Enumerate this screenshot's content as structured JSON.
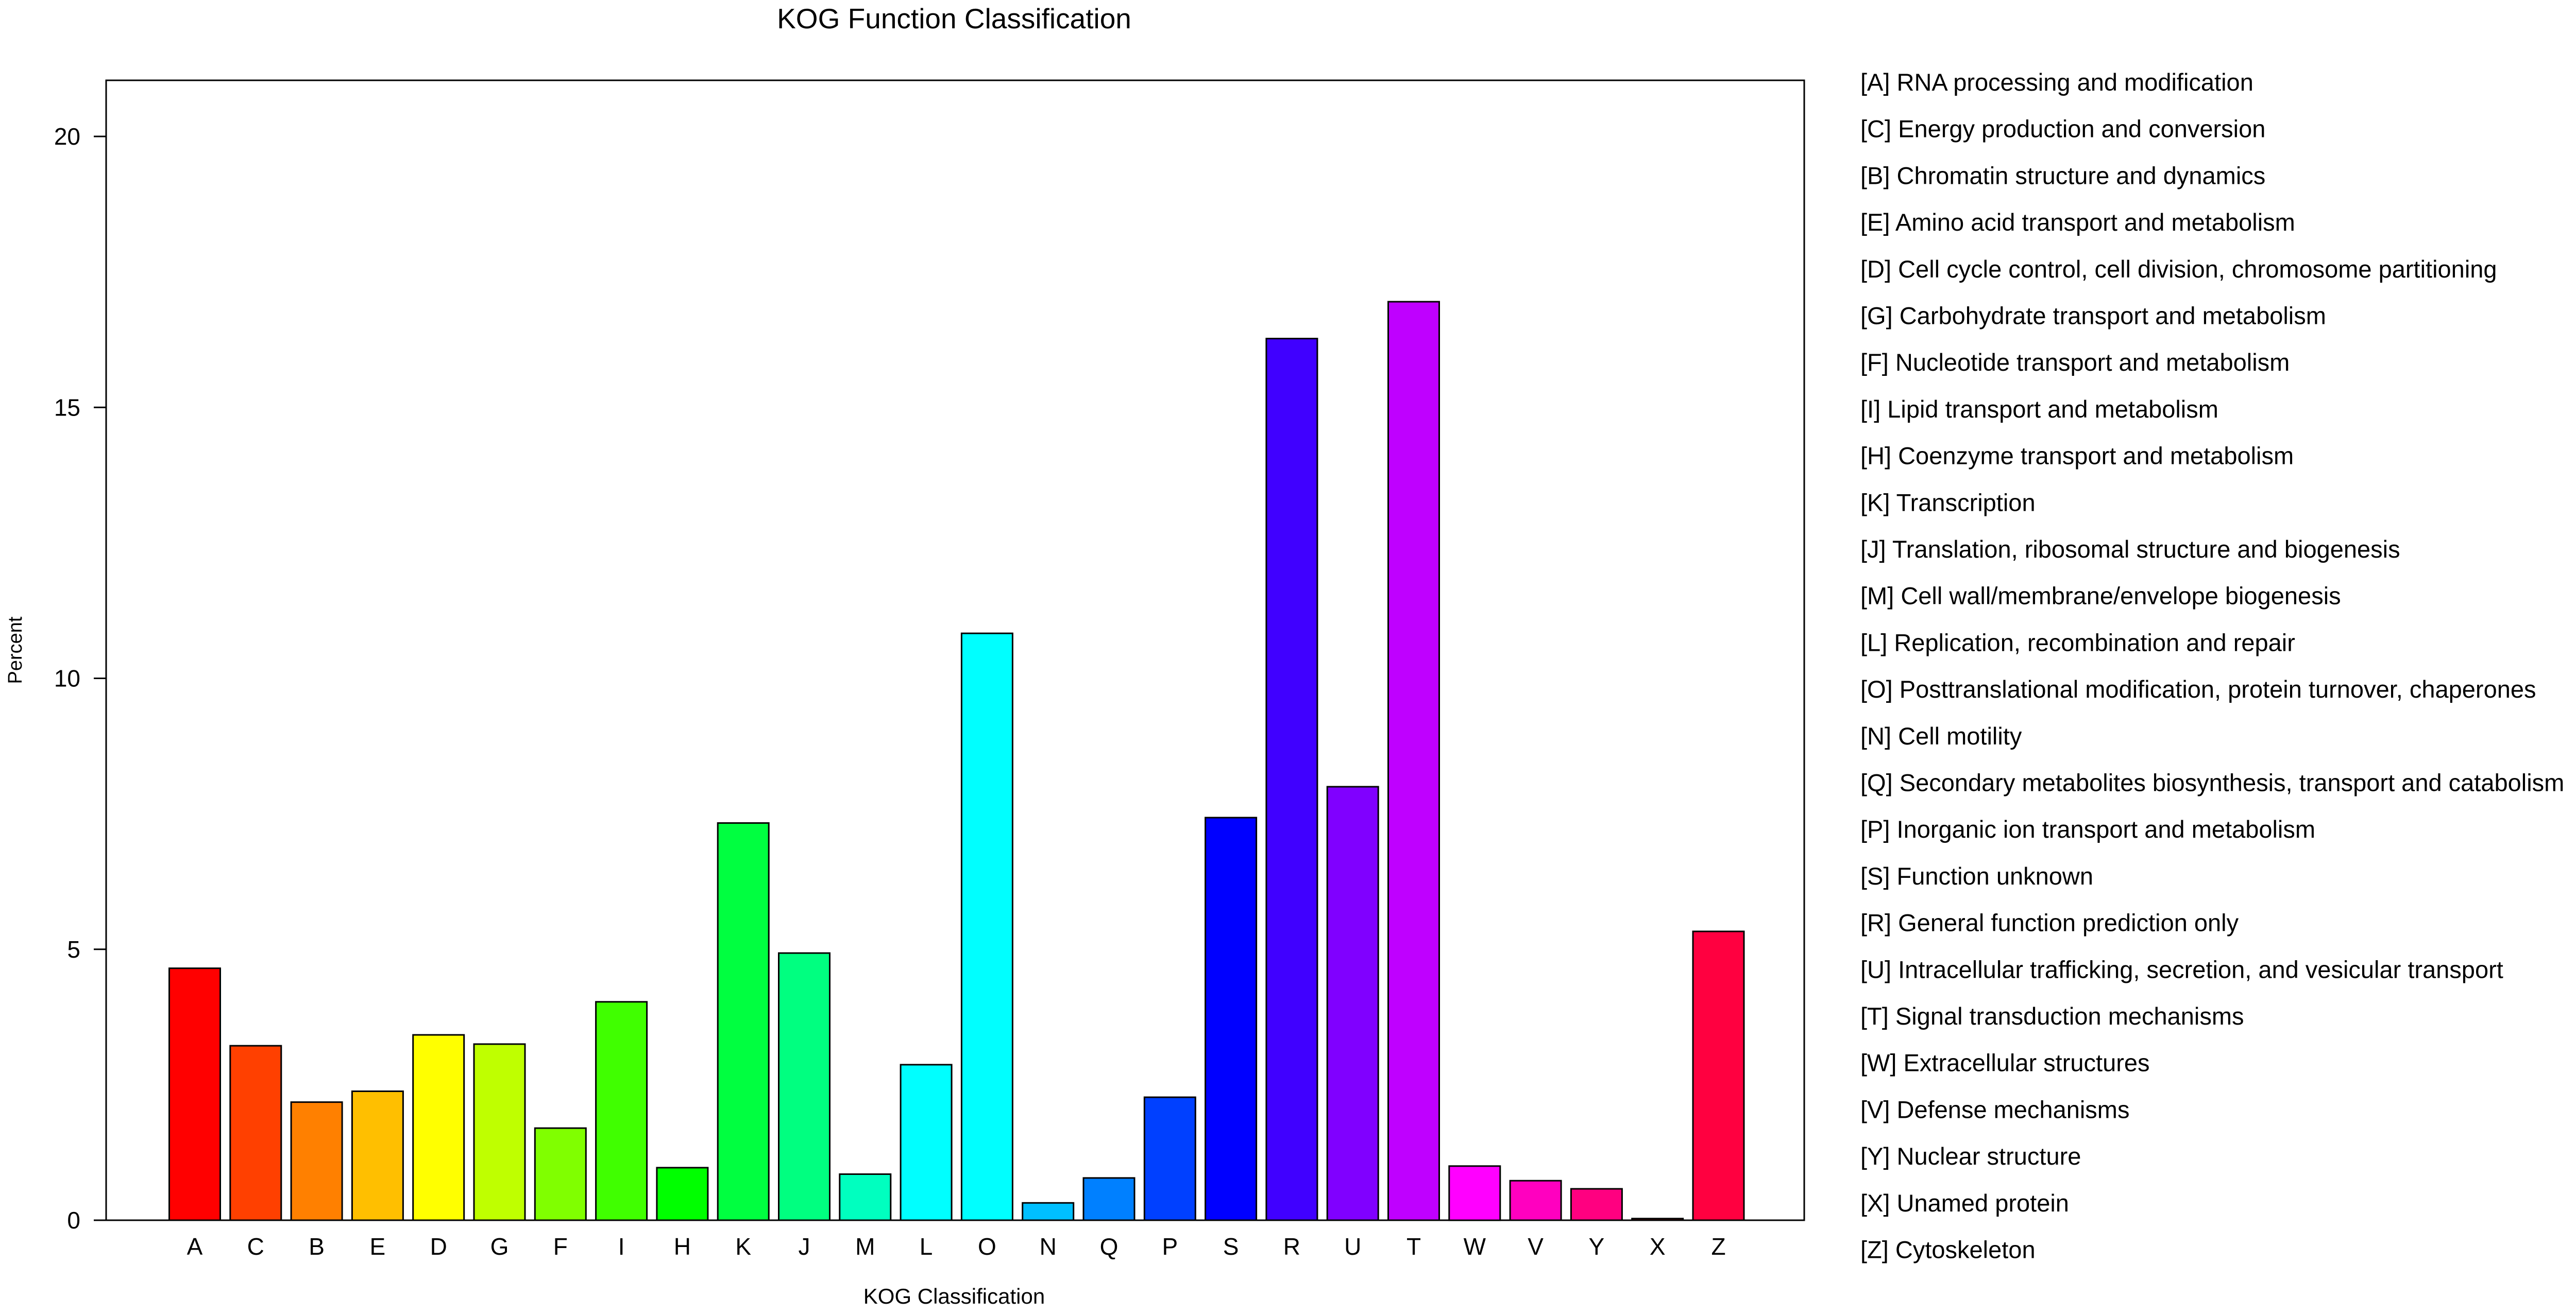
{
  "chart_data": {
    "type": "bar",
    "title": "KOG Function Classification",
    "xlabel": "KOG Classification",
    "ylabel": "Percent",
    "ylim": [
      0,
      21
    ],
    "yticks": [
      0,
      5,
      10,
      15,
      20
    ],
    "grid": false,
    "legend_placement": "right",
    "categories": [
      "A",
      "C",
      "B",
      "E",
      "D",
      "G",
      "F",
      "I",
      "H",
      "K",
      "J",
      "M",
      "L",
      "O",
      "N",
      "Q",
      "P",
      "S",
      "R",
      "U",
      "T",
      "W",
      "V",
      "Y",
      "X",
      "Z"
    ],
    "values": [
      4.65,
      3.22,
      2.18,
      2.38,
      3.42,
      3.25,
      1.7,
      4.03,
      0.97,
      7.33,
      4.93,
      0.85,
      2.87,
      10.83,
      0.32,
      0.78,
      2.27,
      7.43,
      16.27,
      8.0,
      16.95,
      1.0,
      0.73,
      0.58,
      0.03,
      5.33
    ],
    "colors": [
      "#ff0000",
      "#ff4000",
      "#ff8000",
      "#ffbf00",
      "#ffff00",
      "#bfff00",
      "#80ff00",
      "#40ff00",
      "#00ff00",
      "#00ff40",
      "#00ff80",
      "#00ffbf",
      "#00ffff",
      "#00ffff",
      "#00bfff",
      "#0080ff",
      "#0040ff",
      "#0000ff",
      "#4000ff",
      "#8000ff",
      "#bf00ff",
      "#ff00ff",
      "#ff00bf",
      "#ff0080",
      "#ff0040",
      "#ff0040"
    ],
    "legend": [
      "[A] RNA processing and modification",
      "[C] Energy production and conversion",
      "[B] Chromatin structure and dynamics",
      "[E] Amino acid transport and metabolism",
      "[D] Cell cycle control, cell division, chromosome partitioning",
      "[G] Carbohydrate transport and metabolism",
      "[F] Nucleotide transport and metabolism",
      "[I] Lipid transport and metabolism",
      "[H] Coenzyme transport and metabolism",
      "[K] Transcription",
      "[J] Translation, ribosomal structure and biogenesis",
      "[M] Cell wall/membrane/envelope biogenesis",
      "[L] Replication, recombination and repair",
      "[O] Posttranslational modification, protein turnover, chaperones",
      "[N] Cell motility",
      "[Q] Secondary metabolites biosynthesis, transport and catabolism",
      "[P] Inorganic ion transport and metabolism",
      "[S] Function unknown",
      "[R] General function prediction only",
      "[U] Intracellular trafficking, secretion, and vesicular transport",
      "[T] Signal transduction mechanisms",
      "[W] Extracellular structures",
      "[V] Defense mechanisms",
      "[Y] Nuclear structure",
      "[X] Unamed protein",
      "[Z] Cytoskeleton"
    ]
  }
}
